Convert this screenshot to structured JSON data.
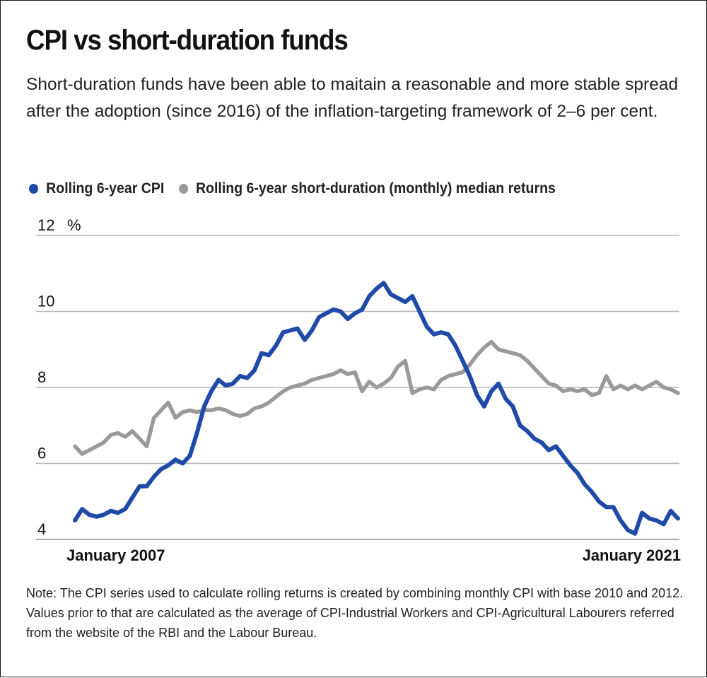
{
  "chart_data": {
    "type": "line",
    "title": "CPI vs short-duration funds",
    "subtitle": "Short-duration funds have been able to maitain a reasonable and more stable spread after the adoption (since 2016) of the inflation-targeting framework of 2–6 per cent.",
    "y_unit": "%",
    "ylim": [
      4,
      12
    ],
    "y_ticks": [
      "12",
      "10",
      "8",
      "6",
      "4"
    ],
    "x_labels": [
      "January 2007",
      "January 2021"
    ],
    "xlim": [
      "2007-01",
      "2021-01"
    ],
    "grid": true,
    "legend_position": "top-left",
    "note": "Note: The CPI series used to calculate rolling returns is created by combining monthly CPI with base 2010 and 2012. Values prior to that are calculated as the average of CPI-Industrial Workers and CPI-Agricultural Labourers referred from the website of the RBI and the Labour Bureau.",
    "series": [
      {
        "name": "Rolling 6-year CPI",
        "color": "#1f4aa8",
        "points": [
          [
            "2007-01",
            4.5
          ],
          [
            "2007-03",
            4.8
          ],
          [
            "2007-05",
            4.65
          ],
          [
            "2007-07",
            4.6
          ],
          [
            "2007-09",
            4.65
          ],
          [
            "2007-11",
            4.75
          ],
          [
            "2008-01",
            4.7
          ],
          [
            "2008-03",
            4.8
          ],
          [
            "2008-05",
            5.1
          ],
          [
            "2008-07",
            5.4
          ],
          [
            "2008-09",
            5.4
          ],
          [
            "2008-11",
            5.65
          ],
          [
            "2009-01",
            5.85
          ],
          [
            "2009-03",
            5.95
          ],
          [
            "2009-05",
            6.1
          ],
          [
            "2009-07",
            6.0
          ],
          [
            "2009-09",
            6.2
          ],
          [
            "2009-11",
            6.8
          ],
          [
            "2010-01",
            7.5
          ],
          [
            "2010-03",
            7.9
          ],
          [
            "2010-05",
            8.2
          ],
          [
            "2010-07",
            8.05
          ],
          [
            "2010-09",
            8.1
          ],
          [
            "2010-11",
            8.3
          ],
          [
            "2011-01",
            8.25
          ],
          [
            "2011-03",
            8.45
          ],
          [
            "2011-05",
            8.9
          ],
          [
            "2011-07",
            8.85
          ],
          [
            "2011-09",
            9.1
          ],
          [
            "2011-11",
            9.45
          ],
          [
            "2012-01",
            9.5
          ],
          [
            "2012-03",
            9.55
          ],
          [
            "2012-05",
            9.25
          ],
          [
            "2012-07",
            9.5
          ],
          [
            "2012-09",
            9.85
          ],
          [
            "2012-11",
            9.95
          ],
          [
            "2013-01",
            10.05
          ],
          [
            "2013-03",
            10.0
          ],
          [
            "2013-05",
            9.8
          ],
          [
            "2013-07",
            9.95
          ],
          [
            "2013-09",
            10.05
          ],
          [
            "2013-11",
            10.4
          ],
          [
            "2014-01",
            10.6
          ],
          [
            "2014-03",
            10.75
          ],
          [
            "2014-05",
            10.45
          ],
          [
            "2014-07",
            10.35
          ],
          [
            "2014-09",
            10.25
          ],
          [
            "2014-11",
            10.4
          ],
          [
            "2015-01",
            10.0
          ],
          [
            "2015-03",
            9.6
          ],
          [
            "2015-05",
            9.4
          ],
          [
            "2015-07",
            9.45
          ],
          [
            "2015-09",
            9.4
          ],
          [
            "2015-11",
            9.1
          ],
          [
            "2016-01",
            8.7
          ],
          [
            "2016-03",
            8.3
          ],
          [
            "2016-05",
            7.8
          ],
          [
            "2016-07",
            7.5
          ],
          [
            "2016-09",
            7.9
          ],
          [
            "2016-11",
            8.1
          ],
          [
            "2017-01",
            7.7
          ],
          [
            "2017-03",
            7.5
          ],
          [
            "2017-05",
            7.0
          ],
          [
            "2017-07",
            6.85
          ],
          [
            "2017-09",
            6.65
          ],
          [
            "2017-11",
            6.55
          ],
          [
            "2018-01",
            6.35
          ],
          [
            "2018-03",
            6.45
          ],
          [
            "2018-05",
            6.2
          ],
          [
            "2018-07",
            5.95
          ],
          [
            "2018-09",
            5.75
          ],
          [
            "2018-11",
            5.45
          ],
          [
            "2019-01",
            5.25
          ],
          [
            "2019-03",
            5.0
          ],
          [
            "2019-05",
            4.85
          ],
          [
            "2019-07",
            4.85
          ],
          [
            "2019-09",
            4.5
          ],
          [
            "2019-11",
            4.25
          ],
          [
            "2020-01",
            4.15
          ],
          [
            "2020-03",
            4.7
          ],
          [
            "2020-05",
            4.55
          ],
          [
            "2020-07",
            4.5
          ],
          [
            "2020-09",
            4.4
          ],
          [
            "2020-11",
            4.75
          ],
          [
            "2021-01",
            4.55
          ]
        ]
      },
      {
        "name": "Rolling 6-year short-duration (monthly) median returns",
        "color": "#9a9a9c",
        "points": [
          [
            "2007-01",
            6.45
          ],
          [
            "2007-03",
            6.25
          ],
          [
            "2007-05",
            6.35
          ],
          [
            "2007-07",
            6.45
          ],
          [
            "2007-09",
            6.55
          ],
          [
            "2007-11",
            6.75
          ],
          [
            "2008-01",
            6.8
          ],
          [
            "2008-03",
            6.7
          ],
          [
            "2008-05",
            6.85
          ],
          [
            "2008-07",
            6.65
          ],
          [
            "2008-09",
            6.45
          ],
          [
            "2008-11",
            7.2
          ],
          [
            "2009-01",
            7.4
          ],
          [
            "2009-03",
            7.6
          ],
          [
            "2009-05",
            7.2
          ],
          [
            "2009-07",
            7.35
          ],
          [
            "2009-09",
            7.4
          ],
          [
            "2009-11",
            7.35
          ],
          [
            "2010-01",
            7.4
          ],
          [
            "2010-03",
            7.4
          ],
          [
            "2010-05",
            7.45
          ],
          [
            "2010-07",
            7.4
          ],
          [
            "2010-09",
            7.3
          ],
          [
            "2010-11",
            7.25
          ],
          [
            "2011-01",
            7.3
          ],
          [
            "2011-03",
            7.45
          ],
          [
            "2011-05",
            7.5
          ],
          [
            "2011-07",
            7.6
          ],
          [
            "2011-09",
            7.75
          ],
          [
            "2011-11",
            7.9
          ],
          [
            "2012-01",
            8.0
          ],
          [
            "2012-03",
            8.05
          ],
          [
            "2012-05",
            8.1
          ],
          [
            "2012-07",
            8.2
          ],
          [
            "2012-09",
            8.25
          ],
          [
            "2012-11",
            8.3
          ],
          [
            "2013-01",
            8.35
          ],
          [
            "2013-03",
            8.45
          ],
          [
            "2013-05",
            8.35
          ],
          [
            "2013-07",
            8.4
          ],
          [
            "2013-09",
            7.9
          ],
          [
            "2013-11",
            8.15
          ],
          [
            "2014-01",
            8.0
          ],
          [
            "2014-03",
            8.1
          ],
          [
            "2014-05",
            8.25
          ],
          [
            "2014-07",
            8.55
          ],
          [
            "2014-09",
            8.7
          ],
          [
            "2014-11",
            7.85
          ],
          [
            "2015-01",
            7.95
          ],
          [
            "2015-03",
            8.0
          ],
          [
            "2015-05",
            7.95
          ],
          [
            "2015-07",
            8.2
          ],
          [
            "2015-09",
            8.3
          ],
          [
            "2015-11",
            8.35
          ],
          [
            "2016-01",
            8.4
          ],
          [
            "2016-03",
            8.6
          ],
          [
            "2016-05",
            8.85
          ],
          [
            "2016-07",
            9.05
          ],
          [
            "2016-09",
            9.2
          ],
          [
            "2016-11",
            9.0
          ],
          [
            "2017-01",
            8.95
          ],
          [
            "2017-03",
            8.9
          ],
          [
            "2017-05",
            8.85
          ],
          [
            "2017-07",
            8.7
          ],
          [
            "2017-09",
            8.5
          ],
          [
            "2017-11",
            8.3
          ],
          [
            "2018-01",
            8.1
          ],
          [
            "2018-03",
            8.05
          ],
          [
            "2018-05",
            7.9
          ],
          [
            "2018-07",
            7.95
          ],
          [
            "2018-09",
            7.9
          ],
          [
            "2018-11",
            7.95
          ],
          [
            "2019-01",
            7.8
          ],
          [
            "2019-03",
            7.85
          ],
          [
            "2019-05",
            8.3
          ],
          [
            "2019-07",
            7.95
          ],
          [
            "2019-09",
            8.05
          ],
          [
            "2019-11",
            7.95
          ],
          [
            "2020-01",
            8.05
          ],
          [
            "2020-03",
            7.95
          ],
          [
            "2020-05",
            8.05
          ],
          [
            "2020-07",
            8.15
          ],
          [
            "2020-09",
            8.0
          ],
          [
            "2020-11",
            7.95
          ],
          [
            "2021-01",
            7.85
          ]
        ]
      }
    ]
  }
}
